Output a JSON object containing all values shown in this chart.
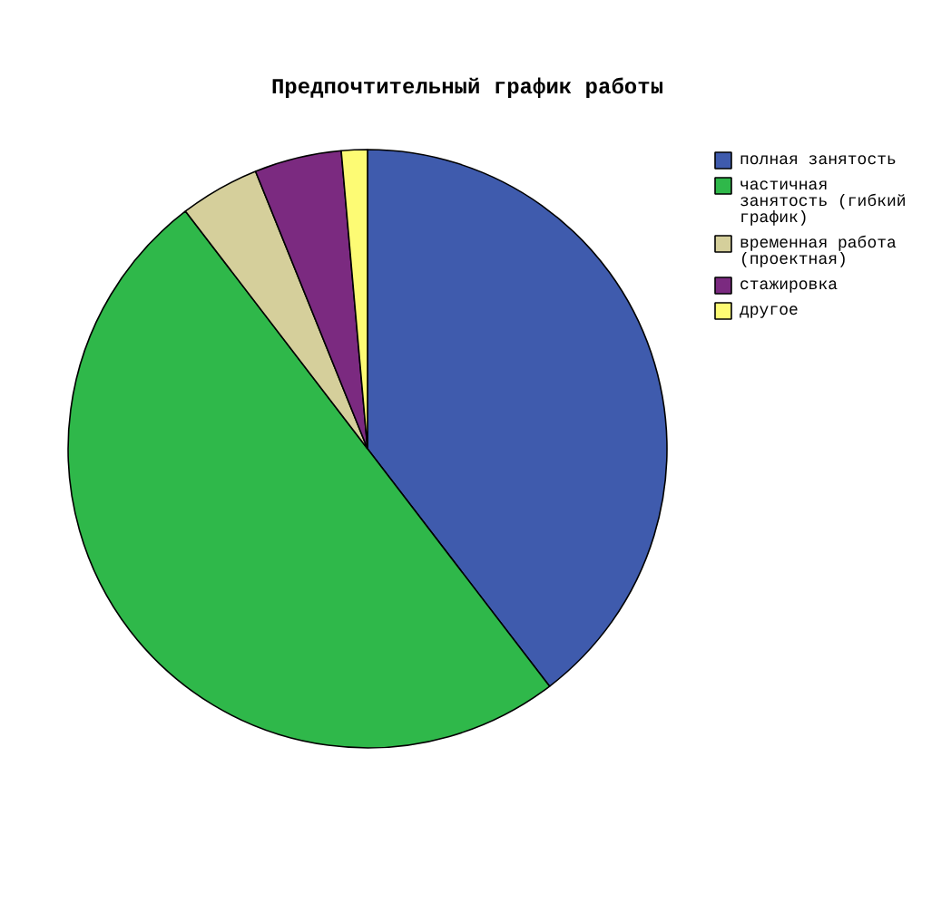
{
  "chart_data": {
    "type": "pie",
    "title": "Предпочтительный график работы",
    "categories": [
      "полная занятость",
      "частичная занятость (гибкий график)",
      "временная работа (проектная)",
      "стажировка",
      "другое"
    ],
    "values": [
      39.6,
      50,
      4.3,
      4.7,
      1.4
    ],
    "colors": [
      "#3f5bad",
      "#2fb84a",
      "#d5cf9b",
      "#7b2a80",
      "#fdfb74"
    ],
    "legend": "right"
  }
}
